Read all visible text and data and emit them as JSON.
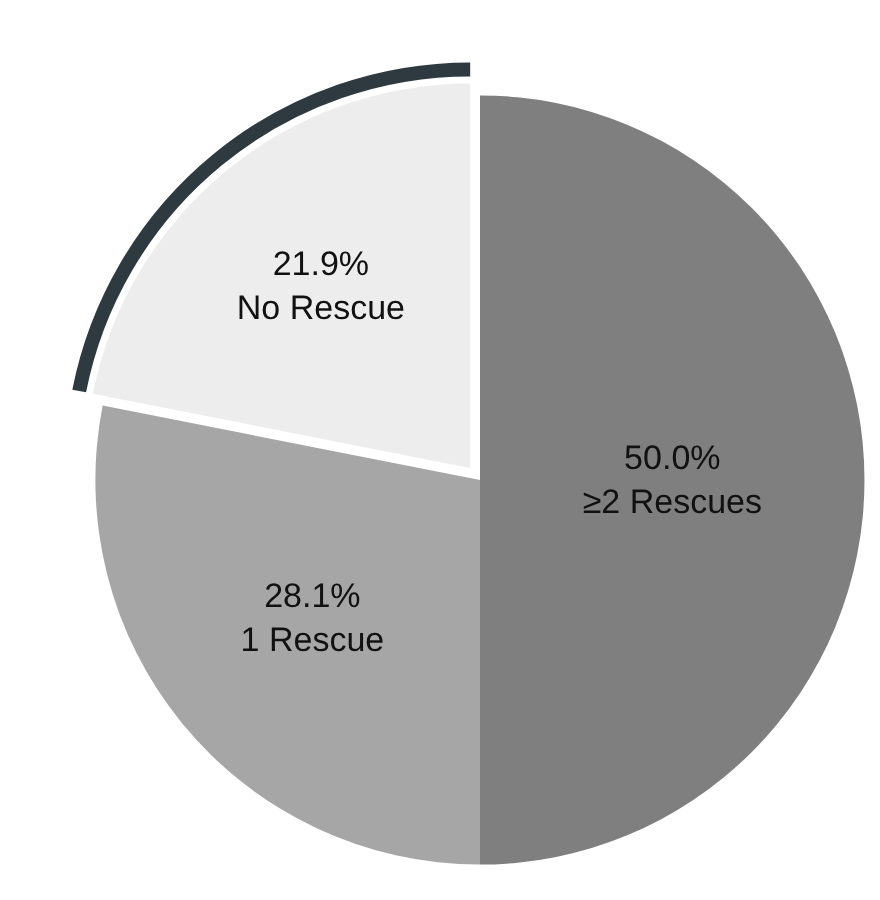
{
  "chart_data": {
    "type": "pie",
    "categories": [
      "≥2 Rescues",
      "1 Rescue",
      "No Rescue"
    ],
    "values": [
      50.0,
      28.1,
      21.9
    ],
    "colors": [
      "#7f7f7f",
      "#a6a6a6",
      "#ededed"
    ],
    "value_labels": [
      "50.0%",
      "28.1%",
      "21.9%"
    ]
  }
}
